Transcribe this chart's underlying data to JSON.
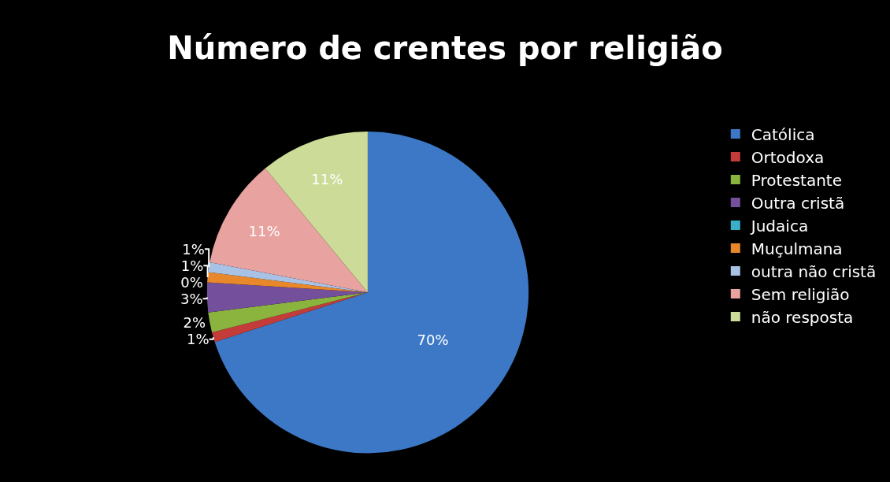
{
  "chart_data": {
    "type": "pie",
    "title": "Número de crentes por religião",
    "categories": [
      "Católica",
      "Ortodoxa",
      "Protestante",
      "Outra cristã",
      "Judaica",
      "Muçulmana",
      "outra não cristã",
      "Sem religião",
      "não resposta"
    ],
    "values": [
      70,
      1,
      2,
      3,
      0,
      1,
      1,
      11,
      11
    ],
    "value_labels": [
      "70%",
      "1%",
      "2%",
      "3%",
      "0%",
      "1%",
      "1%",
      "11%",
      "11%"
    ],
    "colors": [
      "#3d78c6",
      "#c43c3a",
      "#8bb43e",
      "#74509c",
      "#3ab0c8",
      "#e8882a",
      "#a8c2e6",
      "#e8a2a0",
      "#ccdc98"
    ],
    "legend": "right"
  }
}
